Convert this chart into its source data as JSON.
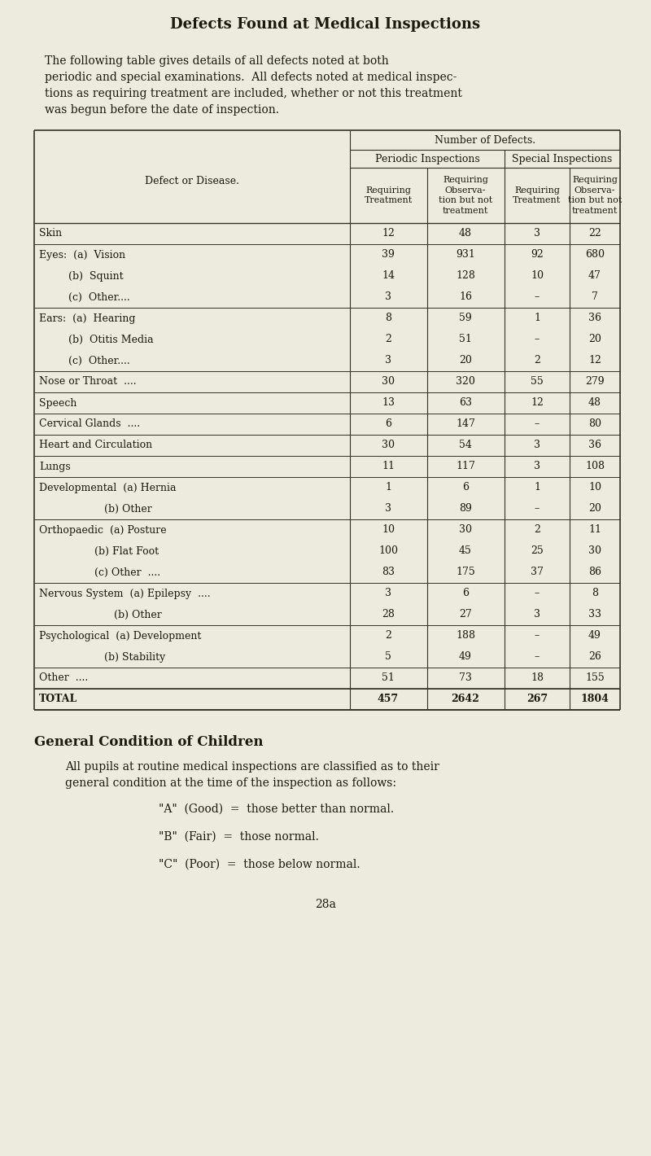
{
  "title": "Defects Found at Medical Inspections",
  "bg_color": "#edeade",
  "text_color": "#1a1a0a",
  "intro_lines": [
    "The following table gives details of all defects noted at both",
    "periodic and special examinations.  All defects noted at medical inspec-",
    "tions as requiring treatment are included, whether or not this treatment",
    "was begun before the date of inspection."
  ],
  "rows": [
    {
      "label": "Skin",
      "sub": false,
      "vals": [
        "12",
        "48",
        "3",
        "22"
      ],
      "group_end": true
    },
    {
      "label": "Eyes:  (a)  Vision",
      "sub": false,
      "vals": [
        "39",
        "931",
        "92",
        "680"
      ],
      "group_end": false
    },
    {
      "label": "         (b)  Squint",
      "sub": true,
      "vals": [
        "14",
        "128",
        "10",
        "47"
      ],
      "group_end": false
    },
    {
      "label": "         (c)  Other....",
      "sub": true,
      "vals": [
        "3",
        "16",
        "–",
        "7"
      ],
      "group_end": true
    },
    {
      "label": "Ears:  (a)  Hearing",
      "sub": false,
      "vals": [
        "8",
        "59",
        "1",
        "36"
      ],
      "group_end": false
    },
    {
      "label": "         (b)  Otitis Media",
      "sub": true,
      "vals": [
        "2",
        "51",
        "–",
        "20"
      ],
      "group_end": false
    },
    {
      "label": "         (c)  Other....",
      "sub": true,
      "vals": [
        "3",
        "20",
        "2",
        "12"
      ],
      "group_end": true
    },
    {
      "label": "Nose or Throat  ....",
      "sub": false,
      "vals": [
        "30",
        "320",
        "55",
        "279"
      ],
      "group_end": true
    },
    {
      "label": "Speech",
      "sub": false,
      "vals": [
        "13",
        "63",
        "12",
        "48"
      ],
      "group_end": true
    },
    {
      "label": "Cervical Glands  ....",
      "sub": false,
      "vals": [
        "6",
        "147",
        "–",
        "80"
      ],
      "group_end": true
    },
    {
      "label": "Heart and Circulation",
      "sub": false,
      "vals": [
        "30",
        "54",
        "3",
        "36"
      ],
      "group_end": true
    },
    {
      "label": "Lungs",
      "sub": false,
      "vals": [
        "11",
        "117",
        "3",
        "108"
      ],
      "group_end": true
    },
    {
      "label": "Developmental  (a) Hernia",
      "sub": false,
      "vals": [
        "1",
        "6",
        "1",
        "10"
      ],
      "group_end": false
    },
    {
      "label": "                    (b) Other",
      "sub": true,
      "vals": [
        "3",
        "89",
        "–",
        "20"
      ],
      "group_end": true
    },
    {
      "label": "Orthopaedic  (a) Posture",
      "sub": false,
      "vals": [
        "10",
        "30",
        "2",
        "11"
      ],
      "group_end": false
    },
    {
      "label": "                 (b) Flat Foot",
      "sub": true,
      "vals": [
        "100",
        "45",
        "25",
        "30"
      ],
      "group_end": false
    },
    {
      "label": "                 (c) Other  ....",
      "sub": true,
      "vals": [
        "83",
        "175",
        "37",
        "86"
      ],
      "group_end": true
    },
    {
      "label": "Nervous System  (a) Epilepsy  ....",
      "sub": false,
      "vals": [
        "3",
        "6",
        "–",
        "8"
      ],
      "group_end": false
    },
    {
      "label": "                       (b) Other",
      "sub": true,
      "vals": [
        "28",
        "27",
        "3",
        "33"
      ],
      "group_end": true
    },
    {
      "label": "Psychological  (a) Development",
      "sub": false,
      "vals": [
        "2",
        "188",
        "–",
        "49"
      ],
      "group_end": false
    },
    {
      "label": "                    (b) Stability",
      "sub": true,
      "vals": [
        "5",
        "49",
        "–",
        "26"
      ],
      "group_end": true
    },
    {
      "label": "Other  ....",
      "sub": false,
      "vals": [
        "51",
        "73",
        "18",
        "155"
      ],
      "group_end": true
    },
    {
      "label": "TOTAL",
      "sub": false,
      "vals": [
        "457",
        "2642",
        "267",
        "1804"
      ],
      "group_end": true,
      "total": true
    }
  ],
  "footer_title": "General Condition of Children",
  "footer_para_lines": [
    "All pupils at routine medical inspections are classified as to their",
    "general condition at the time of the inspection as follows:"
  ],
  "footer_items": [
    "\"A\"  (Good)  =  those better than normal.",
    "\"B\"  (Fair)  =  those normal.",
    "\"C\"  (Poor)  =  those below normal."
  ],
  "page_num": "28a"
}
